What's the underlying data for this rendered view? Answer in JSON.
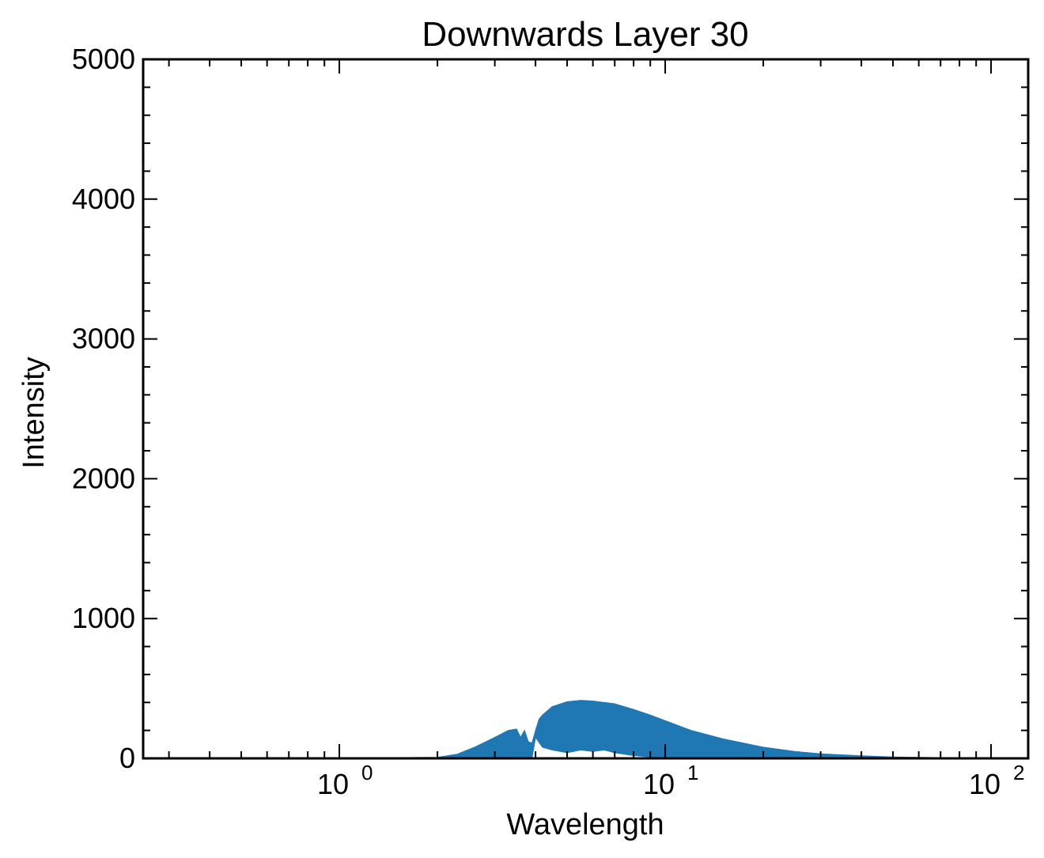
{
  "chart_data": {
    "type": "area",
    "title": "Downwards Layer 30",
    "xlabel": "Wavelength",
    "ylabel": "Intensity",
    "xscale": "log",
    "xlim": [
      0.25,
      130
    ],
    "ylim": [
      0,
      5000
    ],
    "grid": false,
    "legend": "none",
    "x_tick_labels": [
      {
        "value": 1,
        "base": "10",
        "exp": "0"
      },
      {
        "value": 10,
        "base": "10",
        "exp": "1"
      },
      {
        "value": 100,
        "base": "10",
        "exp": "2"
      }
    ],
    "y_tick_labels": [
      "0",
      "1000",
      "2000",
      "3000",
      "4000",
      "5000"
    ],
    "y_tick_values": [
      0,
      1000,
      2000,
      3000,
      4000,
      5000
    ],
    "series": [
      {
        "color": "#1f77b4",
        "upper": {
          "x": [
            0.3,
            0.5,
            1.0,
            1.5,
            2.0,
            2.3,
            2.6,
            3.0,
            3.3,
            3.5,
            3.6,
            3.7,
            3.8,
            3.9,
            4.0,
            4.1,
            4.2,
            4.5,
            5.0,
            5.5,
            6.0,
            7.0,
            8.0,
            9.0,
            10,
            12,
            15,
            20,
            25,
            30,
            40,
            50,
            70,
            100,
            120
          ],
          "y": [
            2,
            2,
            3,
            5,
            8,
            30,
            80,
            150,
            200,
            210,
            150,
            200,
            120,
            110,
            200,
            280,
            310,
            370,
            405,
            415,
            410,
            390,
            350,
            310,
            270,
            200,
            140,
            80,
            50,
            32,
            18,
            10,
            5,
            2,
            1
          ]
        },
        "lower": {
          "x": [
            0.3,
            3.5,
            3.9,
            4.0,
            4.2,
            4.5,
            5.0,
            5.5,
            6.0,
            6.5,
            7.0,
            8.0,
            9.0,
            10,
            12,
            15,
            20,
            120
          ],
          "y": [
            0,
            0,
            0,
            150,
            80,
            60,
            40,
            60,
            50,
            60,
            40,
            20,
            10,
            5,
            2,
            0,
            0,
            0
          ]
        }
      }
    ]
  }
}
